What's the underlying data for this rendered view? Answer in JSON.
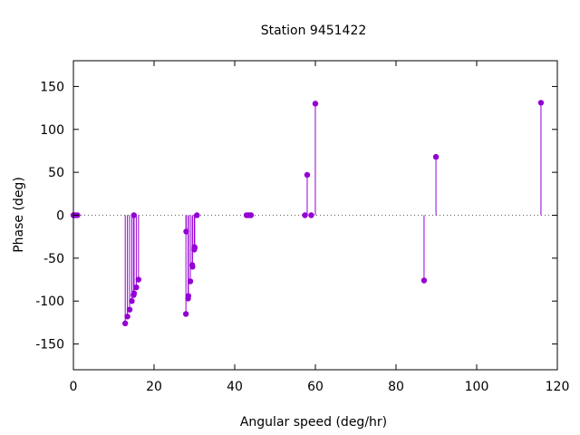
{
  "chart_data": {
    "type": "stem",
    "title": "Station 9451422",
    "xlabel": "Angular speed (deg/hr)",
    "ylabel": "Phase (deg)",
    "xlim": [
      0,
      120
    ],
    "ylim": [
      -180,
      180
    ],
    "xticks": [
      0,
      20,
      40,
      60,
      80,
      100,
      120
    ],
    "yticks": [
      -150,
      -100,
      -50,
      0,
      50,
      100,
      150
    ],
    "grid": false,
    "zero_line": "dotted",
    "series_color": "#9400d3",
    "points": [
      {
        "x": 0.0,
        "y": 0
      },
      {
        "x": 0.04,
        "y": 0
      },
      {
        "x": 0.08,
        "y": 0
      },
      {
        "x": 0.5,
        "y": 0
      },
      {
        "x": 1.0,
        "y": 0
      },
      {
        "x": 12.85,
        "y": -126
      },
      {
        "x": 13.4,
        "y": -118
      },
      {
        "x": 13.94,
        "y": -110
      },
      {
        "x": 14.49,
        "y": -100
      },
      {
        "x": 14.92,
        "y": -93
      },
      {
        "x": 15.0,
        "y": 0
      },
      {
        "x": 15.04,
        "y": -91
      },
      {
        "x": 15.59,
        "y": -84
      },
      {
        "x": 16.14,
        "y": -75
      },
      {
        "x": 27.9,
        "y": -115
      },
      {
        "x": 27.97,
        "y": -19
      },
      {
        "x": 28.44,
        "y": -97
      },
      {
        "x": 28.51,
        "y": -94
      },
      {
        "x": 28.99,
        "y": -77
      },
      {
        "x": 29.46,
        "y": -58
      },
      {
        "x": 29.53,
        "y": -60
      },
      {
        "x": 29.96,
        "y": -40
      },
      {
        "x": 30.0,
        "y": -37
      },
      {
        "x": 30.08,
        "y": -38
      },
      {
        "x": 30.63,
        "y": 0
      },
      {
        "x": 42.93,
        "y": 0
      },
      {
        "x": 43.48,
        "y": 0
      },
      {
        "x": 44.03,
        "y": 0
      },
      {
        "x": 57.42,
        "y": 0
      },
      {
        "x": 57.97,
        "y": 47
      },
      {
        "x": 58.98,
        "y": 0
      },
      {
        "x": 59.99,
        "y": 130
      },
      {
        "x": 86.95,
        "y": -76
      },
      {
        "x": 89.9,
        "y": 68
      },
      {
        "x": 115.94,
        "y": 131
      }
    ]
  }
}
